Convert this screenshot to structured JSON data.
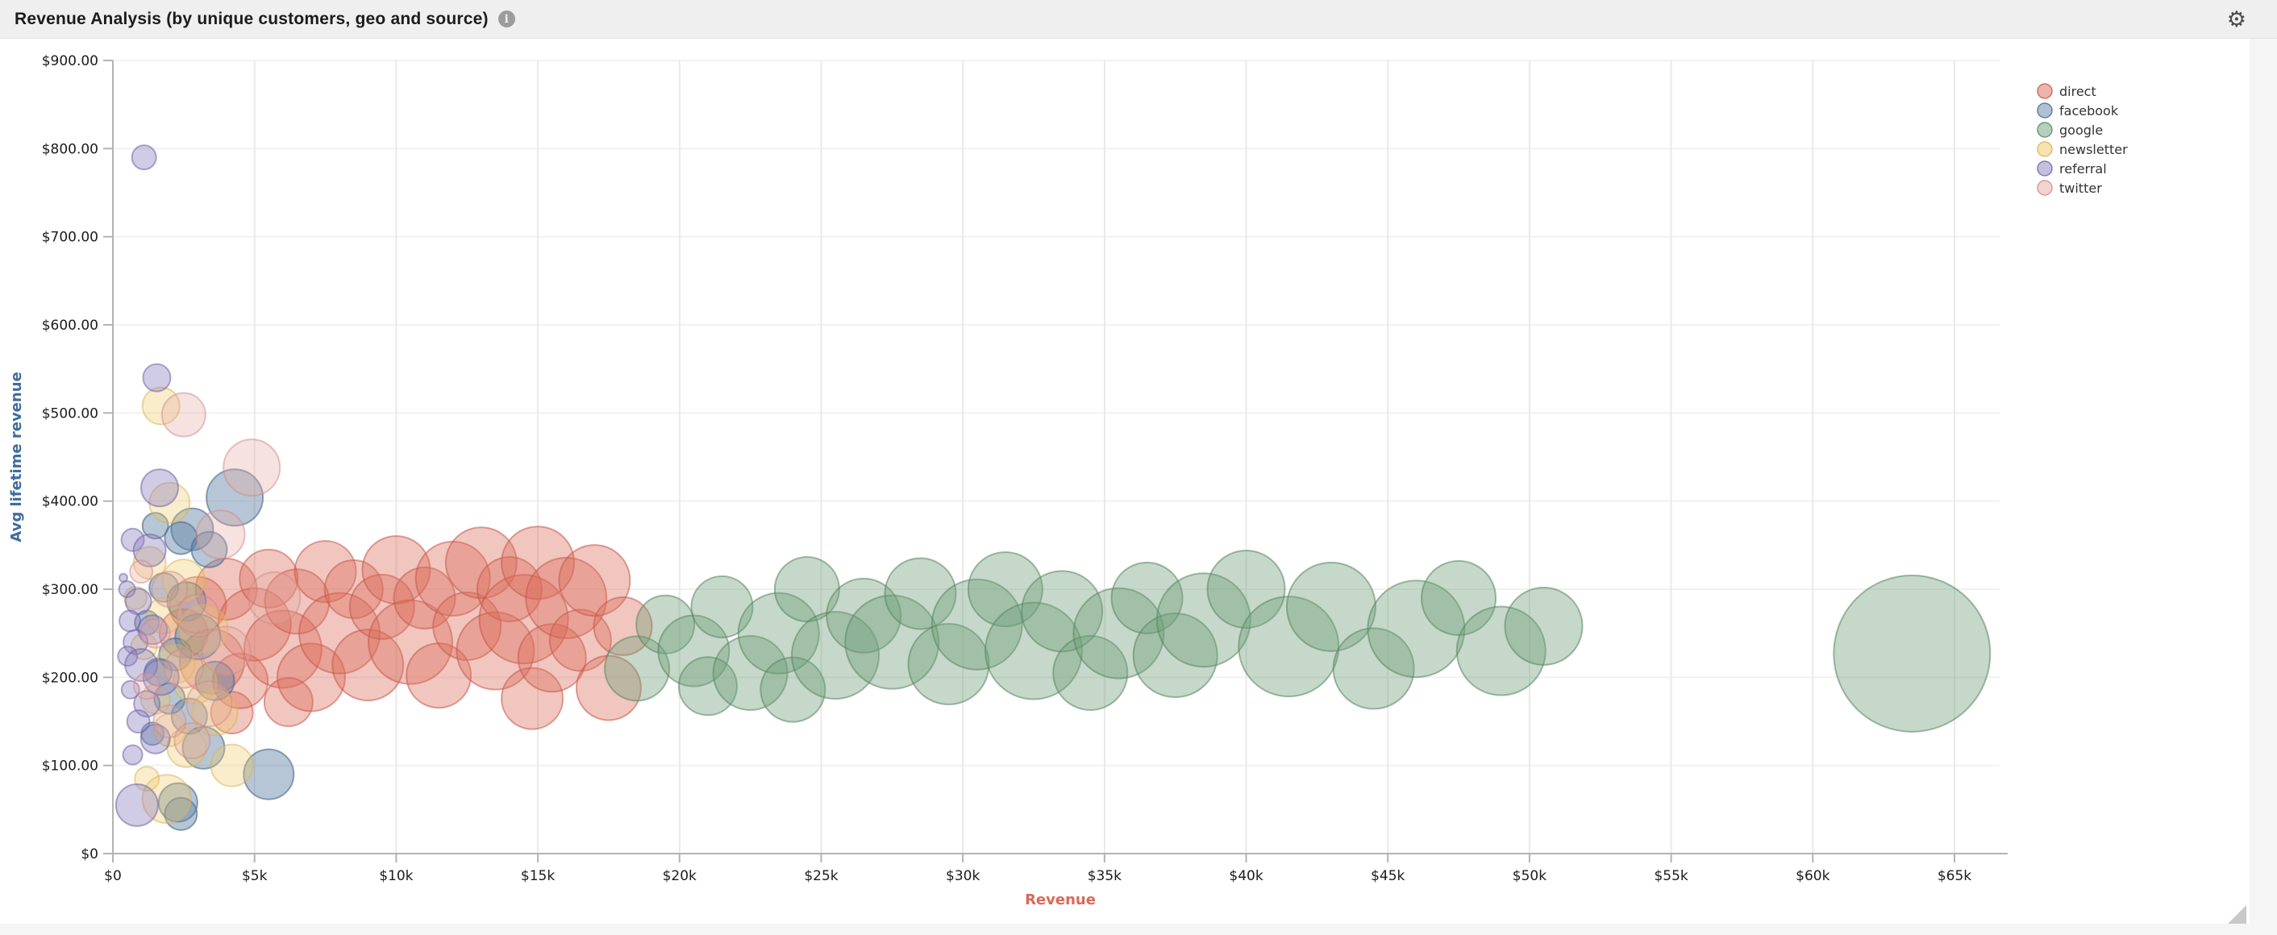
{
  "header": {
    "title": "Revenue Analysis (by unique customers, geo and source)",
    "icons": {
      "info": "i",
      "settings": "⚙"
    }
  },
  "chart_data": {
    "type": "scatter",
    "title": "Revenue Analysis (by unique customers, geo and source)",
    "xlabel": "Revenue",
    "ylabel": "Avg lifetime revenue",
    "xlabel_color": "#d9695a",
    "ylabel_color": "#3e6d9c",
    "xlim": [
      0,
      65000
    ],
    "ylim": [
      0,
      900
    ],
    "grid": true,
    "legend_position": "top-right",
    "x_tick_values": [
      0,
      5000,
      10000,
      15000,
      20000,
      25000,
      30000,
      35000,
      40000,
      45000,
      50000,
      55000,
      60000,
      65000
    ],
    "x_tick_labels": [
      "$0",
      "$5k",
      "$10k",
      "$15k",
      "$20k",
      "$25k",
      "$30k",
      "$35k",
      "$40k",
      "$45k",
      "$50k",
      "$55k",
      "$60k",
      "$65k"
    ],
    "y_tick_values": [
      0,
      100,
      200,
      300,
      400,
      500,
      600,
      700,
      800,
      900
    ],
    "y_tick_labels": [
      "$0",
      "$100.00",
      "$200.00",
      "$300.00",
      "$400.00",
      "$500.00",
      "$600.00",
      "$700.00",
      "$800.00",
      "$900.00"
    ],
    "series": [
      {
        "name": "direct",
        "fill": "#d96a56",
        "stroke": "#c4574a",
        "fill_opacity": 0.38,
        "stroke_opacity": 0.55,
        "points": [
          [
            2500,
            250,
            30
          ],
          [
            3000,
            282,
            35
          ],
          [
            3500,
            218,
            40
          ],
          [
            4000,
            300,
            38
          ],
          [
            4200,
            160,
            26
          ],
          [
            4500,
            196,
            34
          ],
          [
            5000,
            260,
            45
          ],
          [
            5500,
            312,
            36
          ],
          [
            6000,
            232,
            48
          ],
          [
            6200,
            172,
            30
          ],
          [
            6500,
            286,
            40
          ],
          [
            7000,
            200,
            42
          ],
          [
            7500,
            320,
            38
          ],
          [
            8000,
            250,
            50
          ],
          [
            8500,
            300,
            36
          ],
          [
            9000,
            214,
            44
          ],
          [
            9500,
            280,
            40
          ],
          [
            10000,
            322,
            42
          ],
          [
            10500,
            240,
            52
          ],
          [
            11000,
            290,
            38
          ],
          [
            11500,
            202,
            40
          ],
          [
            12000,
            312,
            46
          ],
          [
            12500,
            258,
            42
          ],
          [
            13000,
            330,
            44
          ],
          [
            13500,
            230,
            48
          ],
          [
            14000,
            300,
            40
          ],
          [
            14500,
            266,
            55
          ],
          [
            14800,
            176,
            38
          ],
          [
            15000,
            330,
            45
          ],
          [
            15500,
            222,
            42
          ],
          [
            16000,
            290,
            50
          ],
          [
            16500,
            242,
            38
          ],
          [
            17000,
            310,
            44
          ],
          [
            17500,
            188,
            40
          ],
          [
            18000,
            258,
            36
          ]
        ]
      },
      {
        "name": "facebook",
        "fill": "#5f81a5",
        "stroke": "#46688c",
        "fill_opacity": 0.45,
        "stroke_opacity": 0.6,
        "points": [
          [
            4300,
            404,
            35
          ],
          [
            1500,
            372,
            16
          ],
          [
            2800,
            368,
            26
          ],
          [
            2400,
            358,
            20
          ],
          [
            3400,
            345,
            22
          ],
          [
            1800,
            302,
            18
          ],
          [
            2600,
            286,
            24
          ],
          [
            1200,
            262,
            15
          ],
          [
            3000,
            246,
            28
          ],
          [
            2200,
            226,
            20
          ],
          [
            1600,
            206,
            17
          ],
          [
            3600,
            196,
            24
          ],
          [
            2000,
            176,
            19
          ],
          [
            2700,
            156,
            22
          ],
          [
            1400,
            136,
            14
          ],
          [
            3200,
            120,
            26
          ],
          [
            5500,
            90,
            31
          ],
          [
            2300,
            58,
            24
          ],
          [
            2400,
            45,
            20
          ]
        ]
      },
      {
        "name": "google",
        "fill": "#6f9e79",
        "stroke": "#55855f",
        "fill_opacity": 0.4,
        "stroke_opacity": 0.55,
        "points": [
          [
            18500,
            210,
            40
          ],
          [
            19500,
            260,
            36
          ],
          [
            20500,
            230,
            44
          ],
          [
            21000,
            190,
            36
          ],
          [
            21500,
            280,
            38
          ],
          [
            22500,
            205,
            46
          ],
          [
            23500,
            250,
            50
          ],
          [
            24000,
            186,
            40
          ],
          [
            24500,
            300,
            40
          ],
          [
            25500,
            225,
            54
          ],
          [
            26500,
            270,
            46
          ],
          [
            27500,
            240,
            58
          ],
          [
            28500,
            295,
            44
          ],
          [
            29500,
            215,
            50
          ],
          [
            30500,
            260,
            56
          ],
          [
            31500,
            300,
            46
          ],
          [
            32500,
            230,
            60
          ],
          [
            33500,
            275,
            50
          ],
          [
            34500,
            205,
            46
          ],
          [
            35500,
            250,
            56
          ],
          [
            36500,
            290,
            44
          ],
          [
            37500,
            225,
            52
          ],
          [
            38500,
            265,
            58
          ],
          [
            40000,
            300,
            48
          ],
          [
            41500,
            235,
            62
          ],
          [
            43000,
            280,
            55
          ],
          [
            44500,
            210,
            50
          ],
          [
            46000,
            255,
            60
          ],
          [
            47500,
            290,
            46
          ],
          [
            49000,
            230,
            55
          ],
          [
            50500,
            258,
            48
          ],
          [
            63500,
            227,
            97
          ]
        ]
      },
      {
        "name": "newsletter",
        "fill": "#eec75f",
        "stroke": "#d8b254",
        "fill_opacity": 0.32,
        "stroke_opacity": 0.5,
        "points": [
          [
            1700,
            508,
            23
          ],
          [
            2000,
            398,
            25
          ],
          [
            1300,
            330,
            20
          ],
          [
            2500,
            310,
            26
          ],
          [
            800,
            290,
            14
          ],
          [
            1800,
            270,
            22
          ],
          [
            3200,
            255,
            30
          ],
          [
            1100,
            235,
            16
          ],
          [
            2200,
            215,
            24
          ],
          [
            2900,
            195,
            27
          ],
          [
            1500,
            175,
            18
          ],
          [
            3600,
            160,
            28
          ],
          [
            2000,
            140,
            20
          ],
          [
            2600,
            120,
            24
          ],
          [
            4200,
            100,
            26
          ],
          [
            1200,
            85,
            15
          ],
          [
            1900,
            62,
            30
          ]
        ]
      },
      {
        "name": "referral",
        "fill": "#8b7fbe",
        "stroke": "#6e62a8",
        "fill_opacity": 0.4,
        "stroke_opacity": 0.55,
        "points": [
          [
            370,
            313,
            5
          ],
          [
            1100,
            790,
            15
          ],
          [
            1550,
            540,
            17
          ],
          [
            1650,
            415,
            23
          ],
          [
            700,
            356,
            14
          ],
          [
            1300,
            344,
            20
          ],
          [
            500,
            300,
            10
          ],
          [
            900,
            286,
            16
          ],
          [
            600,
            264,
            13
          ],
          [
            1400,
            254,
            18
          ],
          [
            800,
            240,
            15
          ],
          [
            520,
            224,
            12
          ],
          [
            1000,
            214,
            20
          ],
          [
            1700,
            200,
            22
          ],
          [
            620,
            186,
            11
          ],
          [
            1200,
            170,
            16
          ],
          [
            900,
            150,
            14
          ],
          [
            1500,
            130,
            18
          ],
          [
            700,
            112,
            12
          ],
          [
            850,
            55,
            26
          ]
        ]
      },
      {
        "name": "twitter",
        "fill": "#e5a7a2",
        "stroke": "#d08a85",
        "fill_opacity": 0.33,
        "stroke_opacity": 0.5,
        "points": [
          [
            2500,
            498,
            27
          ],
          [
            4900,
            438,
            35
          ],
          [
            3800,
            362,
            30
          ],
          [
            5700,
            290,
            32
          ],
          [
            1000,
            320,
            14
          ],
          [
            2000,
            300,
            22
          ],
          [
            3000,
            270,
            26
          ],
          [
            1500,
            250,
            18
          ],
          [
            4000,
            230,
            30
          ],
          [
            2500,
            210,
            24
          ],
          [
            1200,
            190,
            16
          ],
          [
            3400,
            170,
            28
          ],
          [
            2000,
            150,
            20
          ],
          [
            2800,
            128,
            22
          ]
        ]
      }
    ]
  },
  "colors": {
    "page_bg": "#f5f5f5",
    "header_bg": "#efefef",
    "panel_bg": "#ffffff",
    "axis_line": "#b3b3b3",
    "grid_v": "#e9e9e9",
    "grid_h": "#f1f1f1",
    "tick_text": "#1c1c1c"
  }
}
